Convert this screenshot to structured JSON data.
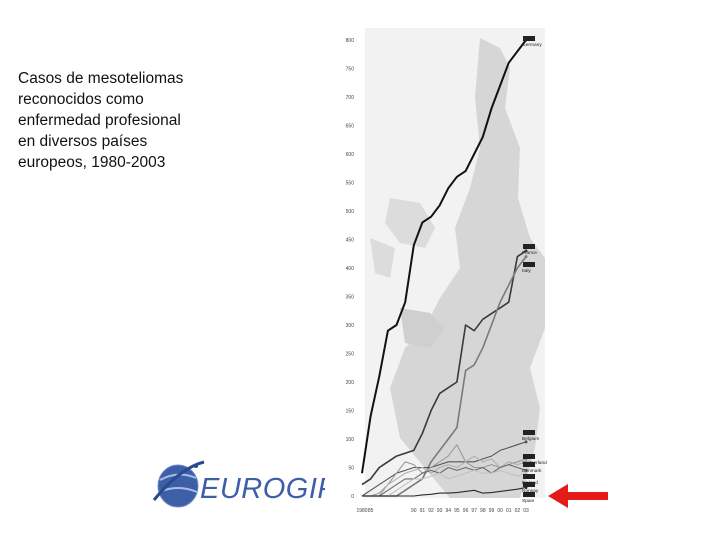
{
  "caption": {
    "lines": [
      "Casos de mesoteliomas",
      "reconocidos como",
      "enfermedad profesional",
      "en diversos países",
      "europeos, 1980-2003"
    ]
  },
  "logo": {
    "text": "EUROGIP"
  },
  "chart_data": {
    "type": "line",
    "ylim": [
      0,
      800
    ],
    "y_ticks": [
      0,
      50,
      100,
      150,
      200,
      250,
      300,
      350,
      400,
      450,
      500,
      550,
      600,
      650,
      700,
      750,
      800
    ],
    "y_tick_labels": [
      "0",
      "50",
      "100",
      "150",
      "200",
      "250",
      "300",
      "350",
      "400",
      "450",
      "500",
      "550",
      "600",
      "650",
      "700",
      "750",
      "800"
    ],
    "x": [
      1980,
      1985,
      1986,
      1987,
      1988,
      1989,
      1990,
      1991,
      1992,
      1993,
      1994,
      1995,
      1996,
      1997,
      1998,
      1999,
      2000,
      2001,
      2002,
      2003
    ],
    "x_tick_labels": [
      "1980",
      "85",
      "",
      "",
      "",
      "",
      "90",
      "91",
      "92",
      "93",
      "94",
      "95",
      "96",
      "97",
      "98",
      "99",
      "00",
      "01",
      "02",
      "03"
    ],
    "series": [
      {
        "name": "Germany",
        "color": "#111111",
        "values": [
          40,
          140,
          210,
          290,
          300,
          340,
          440,
          480,
          490,
          510,
          540,
          560,
          570,
          600,
          630,
          680,
          720,
          760,
          780,
          800
        ]
      },
      {
        "name": "France",
        "color": "#3a3a3a",
        "values": [
          20,
          30,
          50,
          60,
          70,
          75,
          80,
          110,
          150,
          180,
          190,
          200,
          300,
          290,
          310,
          320,
          330,
          340,
          420,
          430
        ]
      },
      {
        "name": "Italy",
        "color": "#7a7a7a",
        "values": [
          0,
          0,
          0,
          0,
          0,
          10,
          20,
          30,
          60,
          80,
          100,
          120,
          220,
          230,
          260,
          300,
          340,
          370,
          400,
          420
        ]
      },
      {
        "name": "Belgium",
        "color": "#555555",
        "values": [
          0,
          10,
          20,
          30,
          40,
          45,
          50,
          50,
          50,
          55,
          60,
          60,
          60,
          60,
          65,
          70,
          80,
          85,
          90,
          95
        ]
      },
      {
        "name": "Switzerland",
        "color": "#9a9a9a",
        "values": [
          0,
          0,
          5,
          20,
          40,
          60,
          55,
          40,
          50,
          60,
          70,
          90,
          60,
          50,
          50,
          55,
          50,
          55,
          60,
          65
        ]
      },
      {
        "name": "Denmark",
        "color": "#b0b0b0",
        "values": [
          0,
          0,
          0,
          20,
          30,
          40,
          45,
          50,
          40,
          50,
          55,
          50,
          60,
          70,
          60,
          65,
          50,
          60,
          55,
          60
        ]
      },
      {
        "name": "Finland",
        "color": "#6a6a6a",
        "values": [
          0,
          0,
          0,
          10,
          20,
          30,
          30,
          40,
          45,
          40,
          50,
          45,
          50,
          45,
          50,
          40,
          50,
          55,
          50,
          45
        ]
      },
      {
        "name": "Norway",
        "color": "#c2c2c2",
        "values": [
          0,
          0,
          0,
          0,
          10,
          20,
          30,
          30,
          35,
          40,
          30,
          35,
          40,
          45,
          40,
          40,
          45,
          40,
          35,
          40
        ]
      },
      {
        "name": "Spain",
        "color": "#2a2a2a",
        "values": [
          0,
          0,
          0,
          0,
          0,
          0,
          0,
          2,
          3,
          5,
          5,
          6,
          8,
          10,
          5,
          6,
          8,
          10,
          12,
          15
        ]
      }
    ],
    "labeled_series": [
      "Germany",
      "France",
      "Italy",
      "Belgium",
      "Switzerland",
      "Denmark",
      "Finland",
      "Norway",
      "Spain"
    ],
    "grid": false,
    "background": "map of Europe"
  }
}
